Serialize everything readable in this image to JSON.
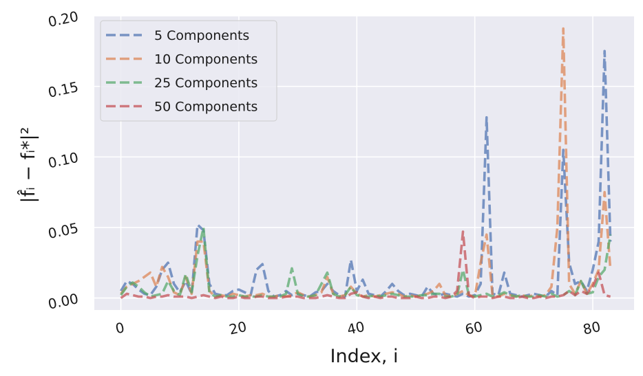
{
  "chart_data": {
    "type": "line",
    "xlabel": "Index, i",
    "ylabel": "|f̂ᵢ − fᵢ*|²",
    "xlim": [
      -4.5,
      87
    ],
    "ylim": [
      -0.0085,
      0.2
    ],
    "xticks": [
      0,
      20,
      40,
      60,
      80
    ],
    "xtick_labels": [
      "0",
      "20",
      "40",
      "60",
      "80"
    ],
    "yticks": [
      0.0,
      0.05,
      0.1,
      0.15,
      0.2
    ],
    "ytick_labels": [
      "0.00",
      "0.05",
      "0.10",
      "0.15",
      "0.20"
    ],
    "grid": true,
    "legend_position": "top-left",
    "background": "#eaeaf2",
    "x": [
      0,
      1,
      2,
      3,
      4,
      5,
      6,
      7,
      8,
      9,
      10,
      11,
      12,
      13,
      14,
      15,
      16,
      17,
      18,
      19,
      20,
      21,
      22,
      23,
      24,
      25,
      26,
      27,
      28,
      29,
      30,
      31,
      32,
      33,
      34,
      35,
      36,
      37,
      38,
      39,
      40,
      41,
      42,
      43,
      44,
      45,
      46,
      47,
      48,
      49,
      50,
      51,
      52,
      53,
      54,
      55,
      56,
      57,
      58,
      59,
      60,
      61,
      62,
      63,
      64,
      65,
      66,
      67,
      68,
      69,
      70,
      71,
      72,
      73,
      74,
      75,
      76,
      77,
      78,
      79,
      80,
      81,
      82,
      83
    ],
    "series": [
      {
        "name": "5 Components",
        "color": "#4c72b0",
        "values": [
          0.005,
          0.012,
          0.01,
          0.006,
          0.003,
          0.002,
          0.008,
          0.02,
          0.025,
          0.01,
          0.004,
          0.012,
          0.003,
          0.052,
          0.048,
          0.01,
          0.003,
          0.002,
          0.002,
          0.005,
          0.006,
          0.004,
          0.002,
          0.02,
          0.024,
          0.005,
          0.001,
          0.002,
          0.005,
          0.002,
          0.003,
          0.002,
          0.001,
          0.004,
          0.005,
          0.01,
          0.005,
          0.002,
          0.001,
          0.027,
          0.005,
          0.013,
          0.003,
          0.002,
          0.001,
          0.005,
          0.01,
          0.005,
          0.002,
          0.003,
          0.002,
          0.001,
          0.008,
          0.003,
          0.002,
          0.003,
          0.002,
          0.001,
          0.003,
          0.001,
          0.002,
          0.01,
          0.128,
          0.003,
          0.002,
          0.018,
          0.003,
          0.002,
          0.001,
          0.002,
          0.003,
          0.002,
          0.001,
          0.005,
          0.002,
          0.105,
          0.025,
          0.01,
          0.012,
          0.005,
          0.02,
          0.04,
          0.175,
          0.04
        ]
      },
      {
        "name": "10 Components",
        "color": "#dd8452",
        "values": [
          0.003,
          0.008,
          0.01,
          0.012,
          0.015,
          0.018,
          0.008,
          0.022,
          0.015,
          0.004,
          0.002,
          0.015,
          0.003,
          0.04,
          0.04,
          0.005,
          0.001,
          0.002,
          0.001,
          0.003,
          0.002,
          0.001,
          0.002,
          0.002,
          0.003,
          0.001,
          0.001,
          0.002,
          0.001,
          0.002,
          0.004,
          0.002,
          0.001,
          0.002,
          0.004,
          0.015,
          0.003,
          0.001,
          0.002,
          0.008,
          0.003,
          0.001,
          0.002,
          0.001,
          0.002,
          0.003,
          0.004,
          0.003,
          0.001,
          0.002,
          0.001,
          0.002,
          0.003,
          0.005,
          0.01,
          0.002,
          0.001,
          0.003,
          0.005,
          0.002,
          0.001,
          0.025,
          0.045,
          0.002,
          0.001,
          0.003,
          0.002,
          0.001,
          0.002,
          0.001,
          0.002,
          0.001,
          0.002,
          0.008,
          0.05,
          0.191,
          0.01,
          0.003,
          0.012,
          0.003,
          0.01,
          0.02,
          0.075,
          0.02
        ]
      },
      {
        "name": "25 Components",
        "color": "#55a868",
        "values": [
          0.002,
          0.008,
          0.011,
          0.008,
          0.004,
          0.001,
          0.002,
          0.003,
          0.012,
          0.005,
          0.002,
          0.017,
          0.004,
          0.03,
          0.05,
          0.004,
          0.001,
          0.002,
          0.001,
          0.001,
          0.002,
          0.001,
          0.001,
          0.001,
          0.002,
          0.001,
          0.001,
          0.001,
          0.003,
          0.021,
          0.003,
          0.001,
          0.001,
          0.002,
          0.01,
          0.018,
          0.003,
          0.001,
          0.002,
          0.008,
          0.002,
          0.001,
          0.001,
          0.002,
          0.001,
          0.002,
          0.003,
          0.002,
          0.001,
          0.001,
          0.001,
          0.002,
          0.002,
          0.003,
          0.003,
          0.001,
          0.001,
          0.002,
          0.02,
          0.002,
          0.001,
          0.002,
          0.003,
          0.001,
          0.002,
          0.004,
          0.002,
          0.001,
          0.002,
          0.001,
          0.001,
          0.002,
          0.001,
          0.003,
          0.001,
          0.002,
          0.005,
          0.002,
          0.012,
          0.003,
          0.004,
          0.015,
          0.02,
          0.045
        ]
      },
      {
        "name": "50 Components",
        "color": "#c44e52",
        "values": [
          0.0,
          0.003,
          0.002,
          0.001,
          0.001,
          0.0,
          0.001,
          0.001,
          0.002,
          0.001,
          0.001,
          0.001,
          0.0,
          0.001,
          0.002,
          0.001,
          0.0,
          0.001,
          0.0,
          0.0,
          0.001,
          0.0,
          0.0,
          0.001,
          0.001,
          0.0,
          0.0,
          0.0,
          0.001,
          0.001,
          0.001,
          0.0,
          0.0,
          0.0,
          0.001,
          0.002,
          0.001,
          0.0,
          0.0,
          0.003,
          0.004,
          0.001,
          0.0,
          0.001,
          0.0,
          0.001,
          0.001,
          0.0,
          0.0,
          0.0,
          0.001,
          0.0,
          0.0,
          0.001,
          0.001,
          0.0,
          0.001,
          0.005,
          0.047,
          0.002,
          0.0,
          0.001,
          0.001,
          0.0,
          0.001,
          0.001,
          0.0,
          0.0,
          0.001,
          0.0,
          0.0,
          0.001,
          0.0,
          0.001,
          0.001,
          0.002,
          0.005,
          0.002,
          0.005,
          0.003,
          0.008,
          0.018,
          0.002,
          0.001
        ]
      }
    ]
  }
}
